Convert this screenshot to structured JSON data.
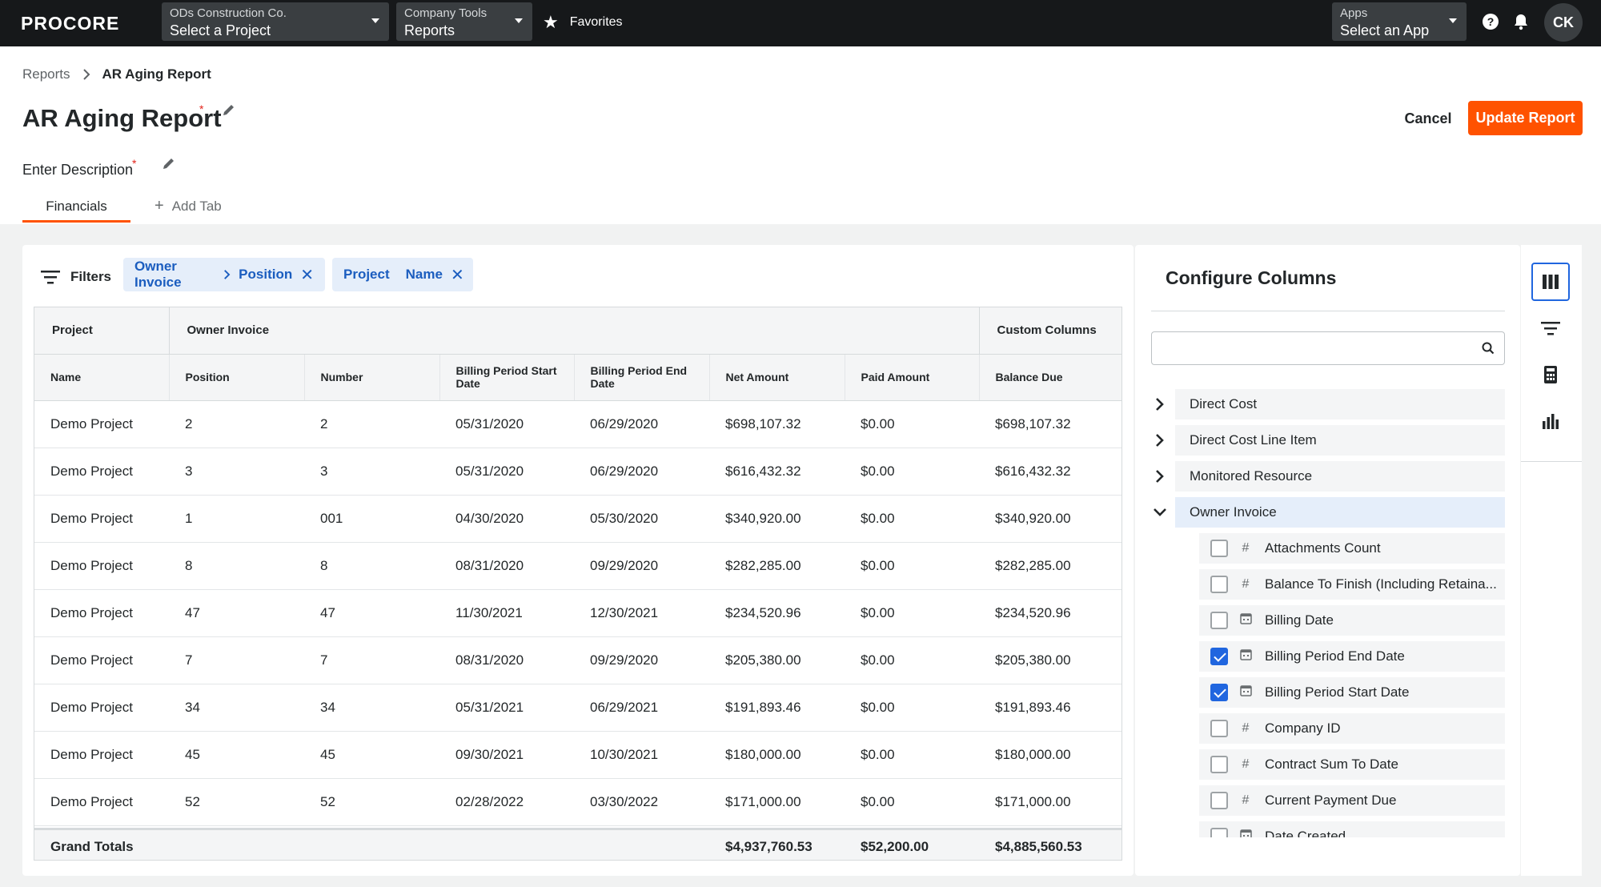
{
  "nav": {
    "logo": "PROCORE",
    "company": {
      "label": "ODs Construction Co.",
      "value": "Select a Project"
    },
    "tools": {
      "label": "Company Tools",
      "value": "Reports"
    },
    "favorites": "Favorites",
    "apps": {
      "label": "Apps",
      "value": "Select an App"
    },
    "avatar": "CK"
  },
  "breadcrumb": {
    "parent": "Reports",
    "current": "AR Aging Report"
  },
  "report": {
    "title": "AR Aging Report",
    "description": "Enter Description",
    "cancel": "Cancel",
    "update": "Update Report"
  },
  "tabs": {
    "active": "Financials",
    "add": "Add Tab"
  },
  "filters": {
    "label": "Filters",
    "chips": [
      {
        "a": "Owner Invoice",
        "b": "Position"
      },
      {
        "a": "Project",
        "b": "Name"
      }
    ]
  },
  "table": {
    "groups": [
      "Project",
      "Owner Invoice",
      "Custom Columns"
    ],
    "columns": [
      "Name",
      "Position",
      "Number",
      "Billing Period Start Date",
      "Billing Period End Date",
      "Net Amount",
      "Paid Amount",
      "Balance Due"
    ],
    "rows": [
      [
        "Demo Project",
        "2",
        "2",
        "05/31/2020",
        "06/29/2020",
        "$698,107.32",
        "$0.00",
        "$698,107.32"
      ],
      [
        "Demo Project",
        "3",
        "3",
        "05/31/2020",
        "06/29/2020",
        "$616,432.32",
        "$0.00",
        "$616,432.32"
      ],
      [
        "Demo Project",
        "1",
        "001",
        "04/30/2020",
        "05/30/2020",
        "$340,920.00",
        "$0.00",
        "$340,920.00"
      ],
      [
        "Demo Project",
        "8",
        "8",
        "08/31/2020",
        "09/29/2020",
        "$282,285.00",
        "$0.00",
        "$282,285.00"
      ],
      [
        "Demo Project",
        "47",
        "47",
        "11/30/2021",
        "12/30/2021",
        "$234,520.96",
        "$0.00",
        "$234,520.96"
      ],
      [
        "Demo Project",
        "7",
        "7",
        "08/31/2020",
        "09/29/2020",
        "$205,380.00",
        "$0.00",
        "$205,380.00"
      ],
      [
        "Demo Project",
        "34",
        "34",
        "05/31/2021",
        "06/29/2021",
        "$191,893.46",
        "$0.00",
        "$191,893.46"
      ],
      [
        "Demo Project",
        "45",
        "45",
        "09/30/2021",
        "10/30/2021",
        "$180,000.00",
        "$0.00",
        "$180,000.00"
      ],
      [
        "Demo Project",
        "52",
        "52",
        "02/28/2022",
        "03/30/2022",
        "$171,000.00",
        "$0.00",
        "$171,000.00"
      ]
    ],
    "totals": {
      "label": "Grand Totals",
      "net": "$4,937,760.53",
      "paid": "$52,200.00",
      "balance": "$4,885,560.53"
    }
  },
  "configure": {
    "title": "Configure Columns",
    "search_placeholder": "",
    "groups": [
      {
        "label": "Direct Cost",
        "open": false
      },
      {
        "label": "Direct Cost Line Item",
        "open": false
      },
      {
        "label": "Monitored Resource",
        "open": false
      },
      {
        "label": "Owner Invoice",
        "open": true
      }
    ],
    "fields": [
      {
        "label": "Attachments Count",
        "type": "number-icon",
        "checked": false
      },
      {
        "label": "Balance To Finish (Including Retaina...",
        "type": "number-icon",
        "checked": false
      },
      {
        "label": "Billing Date",
        "type": "calendar-icon",
        "checked": false
      },
      {
        "label": "Billing Period End Date",
        "type": "calendar-icon",
        "checked": true
      },
      {
        "label": "Billing Period Start Date",
        "type": "calendar-icon",
        "checked": true
      },
      {
        "label": "Company ID",
        "type": "number-icon",
        "checked": false
      },
      {
        "label": "Contract Sum To Date",
        "type": "number-icon",
        "checked": false
      },
      {
        "label": "Current Payment Due",
        "type": "number-icon",
        "checked": false
      },
      {
        "label": "Date Created",
        "type": "calendar-icon",
        "checked": false
      }
    ]
  },
  "colors": {
    "accent": "#ff5200",
    "link": "#1b5dbf",
    "checkbox": "#2066df",
    "nav": "#16181a"
  }
}
